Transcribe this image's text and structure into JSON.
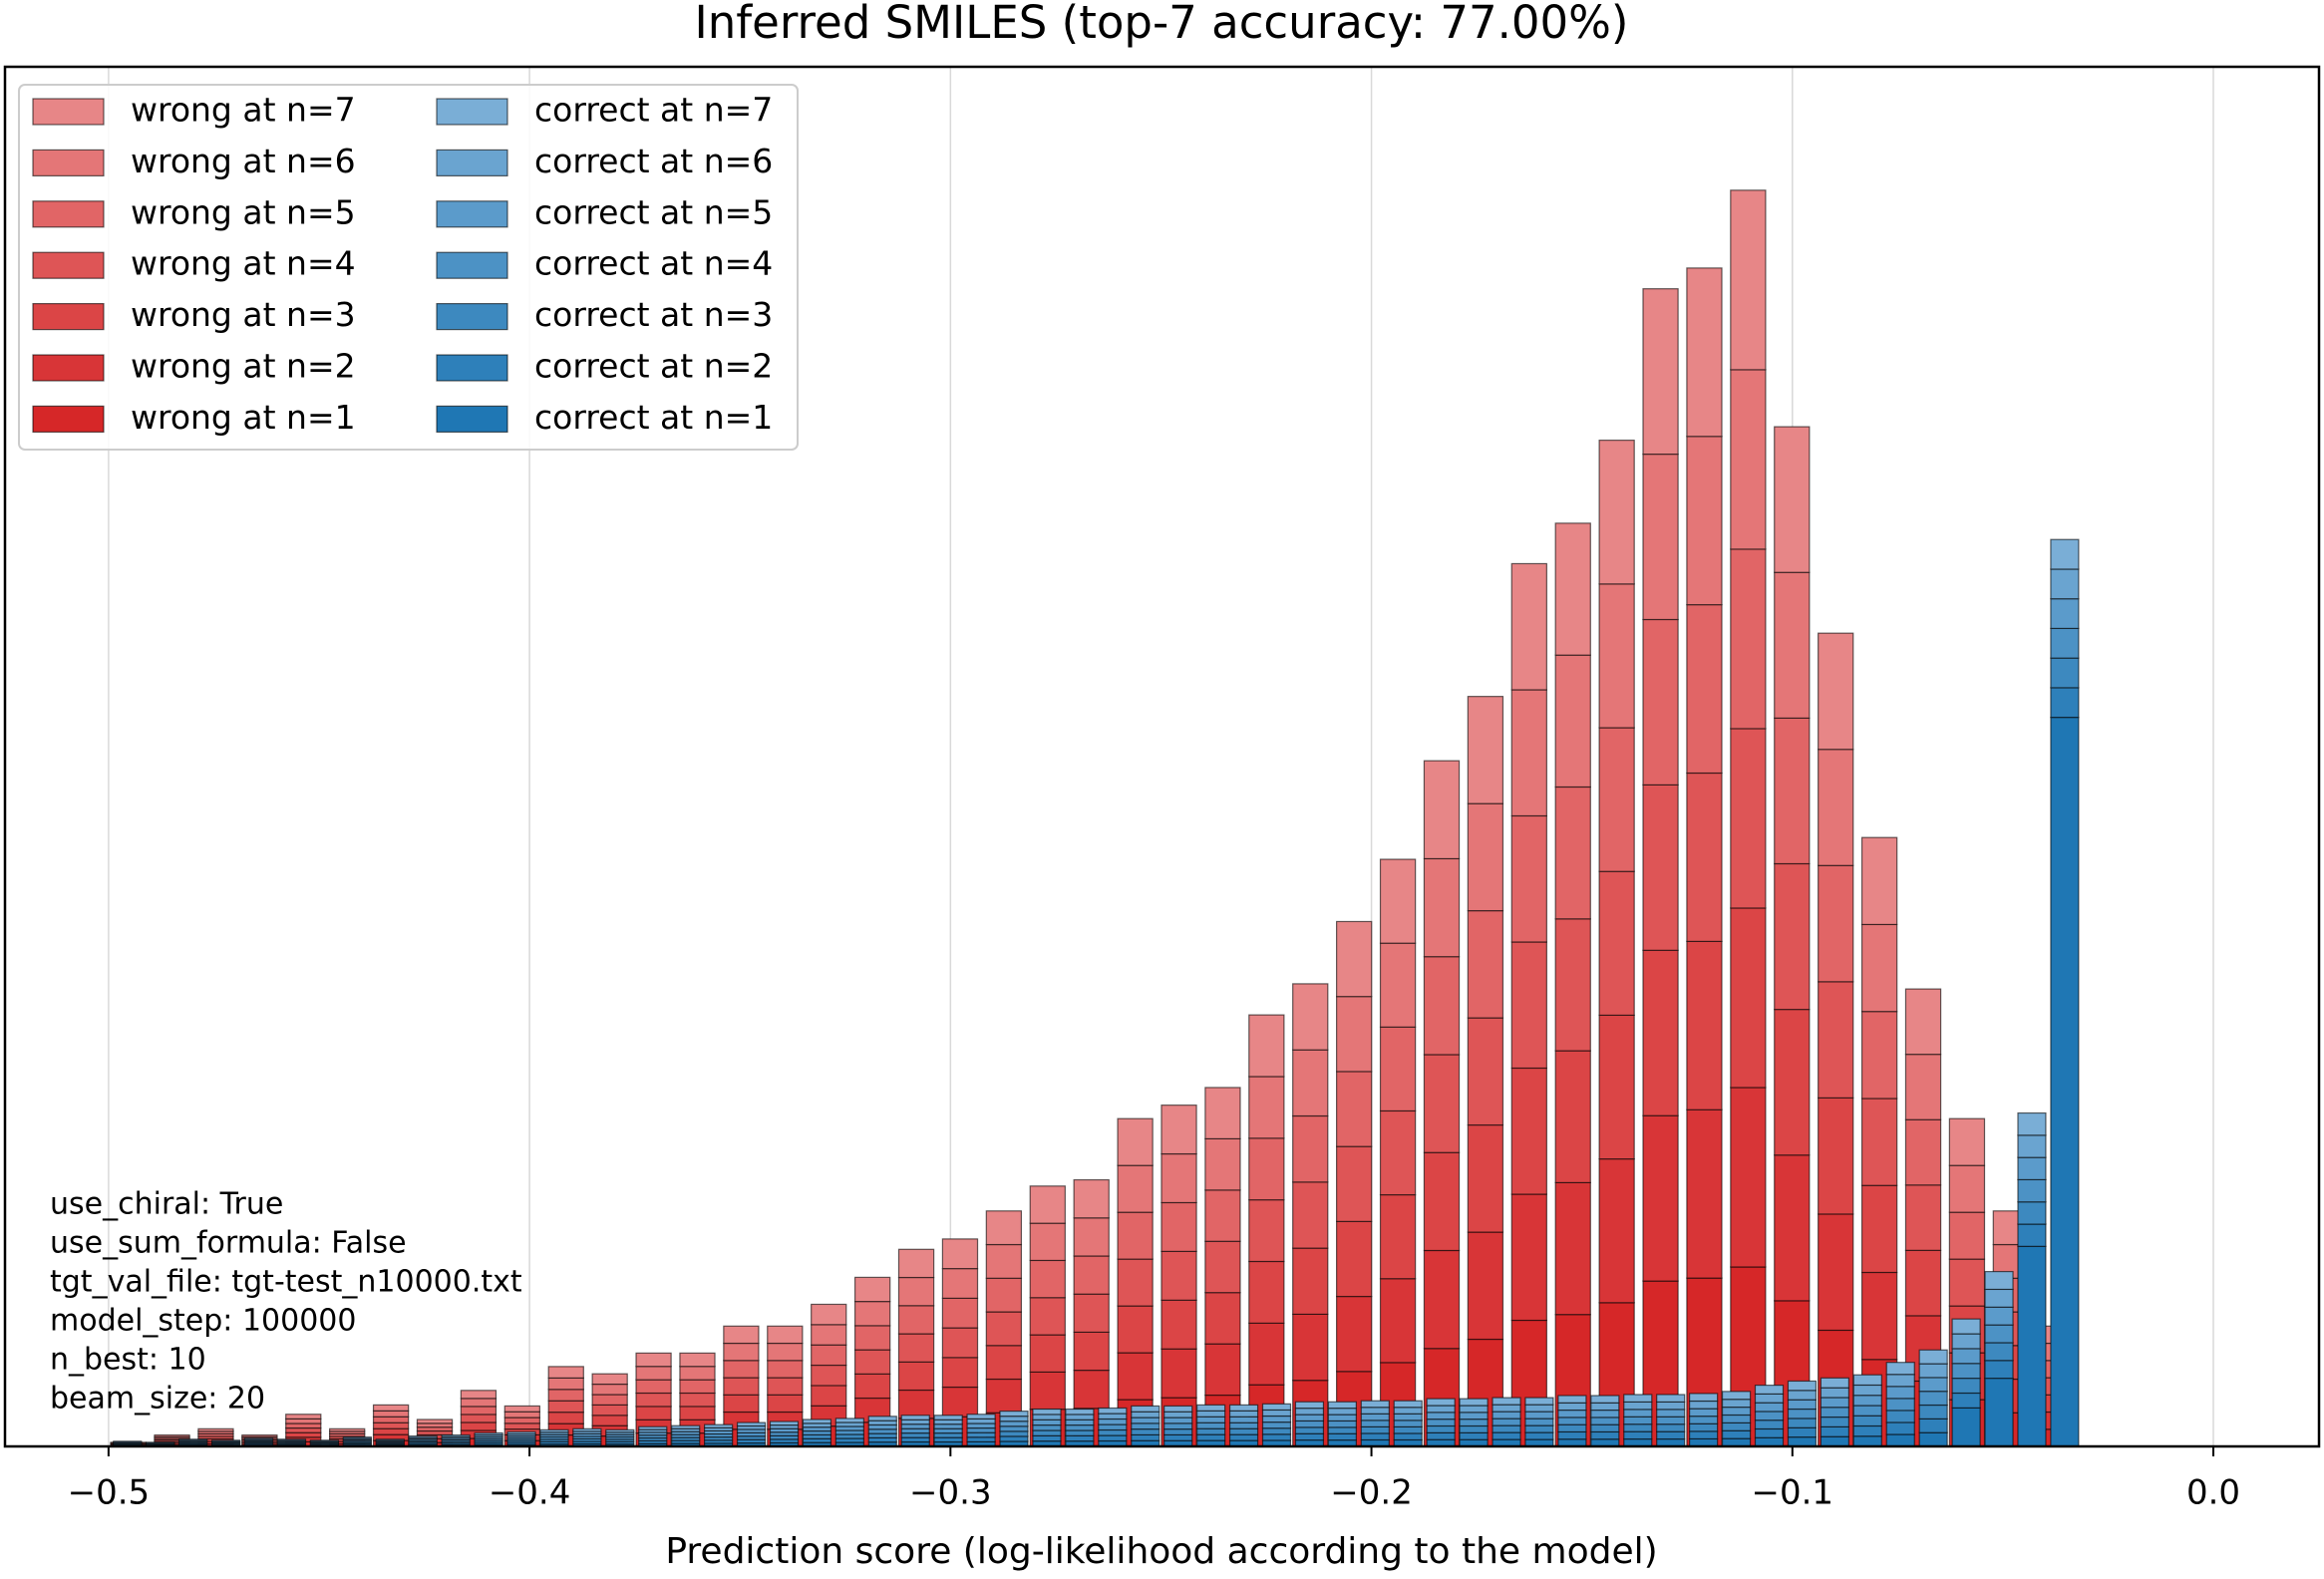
{
  "chart_data": [
    {
      "type": "histogram",
      "title": "Inferred SMILES (top-7 accuracy: 77.00%)",
      "xlabel": "Prediction score (log-likelihood according to the model)",
      "xlim": [
        -0.5246,
        0.0251
      ],
      "ylim": [
        0,
        931
      ],
      "grid": true,
      "xticks": [
        {
          "value": -0.5,
          "label": "−0.5"
        },
        {
          "value": -0.4,
          "label": "−0.4"
        },
        {
          "value": -0.3,
          "label": "−0.3"
        },
        {
          "value": -0.2,
          "label": "−0.2"
        },
        {
          "value": -0.1,
          "label": "−0.1"
        },
        {
          "value": 0,
          "label": "0.0"
        }
      ],
      "legend": "upper left",
      "annotations": [
        "use_chiral: True",
        "use_sum_formula: False",
        "tgt_val_file: tgt-test_n10000.txt",
        "model_step: 100000",
        "n_best: 10",
        "beam_size: 20"
      ],
      "bins": [
        -0.5,
        -0.4896,
        -0.4792,
        -0.4688,
        -0.4584,
        -0.448,
        -0.4376,
        -0.4272,
        -0.4168,
        -0.4064,
        -0.396,
        -0.3856,
        -0.3752,
        -0.3648,
        -0.3544,
        -0.344,
        -0.3336,
        -0.3232,
        -0.3128,
        -0.3024,
        -0.292,
        -0.2816,
        -0.2712,
        -0.2608,
        -0.2504,
        -0.24,
        -0.2296,
        -0.2192,
        -0.2088,
        -0.1984,
        -0.188,
        -0.1776,
        -0.1672,
        -0.1568,
        -0.1464,
        -0.136,
        -0.1256,
        -0.1152,
        -0.1048,
        -0.0944,
        -0.084,
        -0.0736,
        -0.0632,
        -0.0528,
        -0.0424,
        -0.032
      ],
      "series": [
        {
          "name": "wrong at n=7",
          "color": "#e78687",
          "values": [
            0.4,
            1.1,
            1.7,
            1.1,
            3.1,
            1.7,
            4,
            2.6,
            5.4,
            3.9,
            7.7,
            7,
            9,
            9,
            11.6,
            11.6,
            13.7,
            16.3,
            19,
            20,
            22.7,
            25.1,
            25.7,
            31.6,
            32.9,
            34.6,
            41.6,
            44.6,
            50.6,
            56.6,
            66.1,
            72.3,
            85.1,
            89,
            97,
            111.6,
            113.6,
            121.1,
            98.3,
            78.4,
            58.7,
            44.1,
            31.6,
            22.7,
            11.6
          ]
        },
        {
          "name": "wrong at n=6",
          "color": "#e47677",
          "values": [
            0.4,
            1.1,
            1.7,
            1.1,
            3.1,
            1.7,
            4,
            2.6,
            5.4,
            3.9,
            7.7,
            7,
            9,
            9,
            11.6,
            11.6,
            13.7,
            16.3,
            19,
            20,
            22.7,
            25.1,
            25.7,
            31.6,
            32.9,
            34.6,
            41.6,
            44.6,
            50.6,
            56.6,
            66.1,
            72.3,
            85.1,
            89,
            97,
            111.6,
            113.6,
            121.1,
            98.3,
            78.4,
            58.7,
            44.1,
            31.6,
            22.7,
            11.6
          ]
        },
        {
          "name": "wrong at n=5",
          "color": "#e16566",
          "values": [
            0.4,
            1.1,
            1.7,
            1.1,
            3.1,
            1.7,
            4,
            2.6,
            5.4,
            3.9,
            7.7,
            7,
            9,
            9,
            11.6,
            11.6,
            13.7,
            16.3,
            19,
            20,
            22.7,
            25.1,
            25.7,
            31.6,
            32.9,
            34.6,
            41.6,
            44.6,
            50.6,
            56.6,
            66.1,
            72.3,
            85.1,
            89,
            97,
            111.6,
            113.6,
            121.1,
            98.3,
            78.4,
            58.7,
            44.1,
            31.6,
            22.7,
            11.6
          ]
        },
        {
          "name": "wrong at n=4",
          "color": "#de5556",
          "values": [
            0.4,
            1.1,
            1.7,
            1.1,
            3.1,
            1.7,
            4,
            2.6,
            5.4,
            3.9,
            7.7,
            7,
            9,
            9,
            11.6,
            11.6,
            13.7,
            16.3,
            19,
            20,
            22.7,
            25.1,
            25.7,
            31.6,
            32.9,
            34.6,
            41.6,
            44.6,
            50.6,
            56.6,
            66.1,
            72.3,
            85.1,
            89,
            97,
            111.6,
            113.6,
            121.1,
            98.3,
            78.4,
            58.7,
            44.1,
            31.6,
            22.7,
            11.6
          ]
        },
        {
          "name": "wrong at n=3",
          "color": "#db4546",
          "values": [
            0.4,
            1.1,
            1.7,
            1.1,
            3.1,
            1.7,
            4,
            2.6,
            5.4,
            3.9,
            7.7,
            7,
            9,
            9,
            11.6,
            11.6,
            13.7,
            16.3,
            19,
            20,
            22.7,
            25.1,
            25.7,
            31.6,
            32.9,
            34.6,
            41.6,
            44.6,
            50.6,
            56.6,
            66.1,
            72.3,
            85.1,
            89,
            97,
            111.6,
            113.6,
            121.1,
            98.3,
            78.4,
            58.7,
            44.1,
            31.6,
            22.7,
            11.6
          ]
        },
        {
          "name": "wrong at n=2",
          "color": "#d83537",
          "values": [
            0.4,
            1.1,
            1.7,
            1.1,
            3.1,
            1.7,
            4,
            2.6,
            5.4,
            3.9,
            7.7,
            7,
            9,
            9,
            11.6,
            11.6,
            13.7,
            16.3,
            19,
            20,
            22.7,
            25.1,
            25.7,
            31.6,
            32.9,
            34.6,
            41.6,
            44.6,
            50.6,
            56.6,
            66.1,
            72.3,
            85.1,
            89,
            97,
            111.6,
            113.6,
            121.1,
            98.3,
            78.4,
            58.7,
            44.1,
            31.6,
            22.7,
            11.6
          ]
        },
        {
          "name": "wrong at n=1",
          "color": "#d62728",
          "values": [
            0.4,
            1.1,
            1.7,
            1.1,
            3.1,
            1.7,
            4,
            2.6,
            5.4,
            3.9,
            7.7,
            7,
            9,
            9,
            11.6,
            11.6,
            13.7,
            16.3,
            19,
            20,
            22.7,
            25.1,
            25.7,
            31.6,
            32.9,
            34.6,
            41.6,
            44.6,
            50.6,
            56.6,
            66.1,
            72.3,
            85.1,
            89,
            97,
            111.6,
            113.6,
            121.1,
            98.3,
            78.4,
            58.7,
            44.1,
            31.6,
            22.7,
            11.6
          ]
        }
      ]
    },
    {
      "type": "histogram",
      "bins": [
        -0.5,
        -0.4922,
        -0.4844,
        -0.4766,
        -0.4688,
        -0.461,
        -0.4532,
        -0.4454,
        -0.4376,
        -0.4298,
        -0.422,
        -0.4142,
        -0.4064,
        -0.3986,
        -0.3908,
        -0.383,
        -0.3752,
        -0.3674,
        -0.3596,
        -0.3518,
        -0.344,
        -0.3362,
        -0.3284,
        -0.3206,
        -0.3128,
        -0.305,
        -0.2972,
        -0.2894,
        -0.2816,
        -0.2738,
        -0.266,
        -0.2582,
        -0.2504,
        -0.2426,
        -0.2348,
        -0.227,
        -0.2192,
        -0.2114,
        -0.2036,
        -0.1958,
        -0.188,
        -0.1802,
        -0.1724,
        -0.1646,
        -0.1568,
        -0.149,
        -0.1412,
        -0.1334,
        -0.1256,
        -0.1178,
        -0.11,
        -0.1022,
        -0.0944,
        -0.0866,
        -0.0788,
        -0.071,
        -0.0632,
        -0.0554,
        -0.0476,
        -0.0398,
        -0.032
      ],
      "series": [
        {
          "name": "correct at n=7",
          "color": "#7aaed6",
          "values": [
            0.5,
            0.4,
            0.7,
            0.6,
            0.8,
            0.7,
            0.6,
            0.9,
            0.7,
            1,
            1.1,
            1.3,
            1.4,
            1.6,
            1.7,
            1.6,
            1.9,
            2,
            2.1,
            2.3,
            2.4,
            2.6,
            2.7,
            2.9,
            3,
            3,
            3.1,
            3.4,
            3.6,
            3.6,
            3.7,
            3.9,
            3.9,
            4,
            4,
            4.1,
            4.3,
            4.3,
            4.4,
            4.4,
            4.6,
            4.6,
            4.7,
            4.7,
            4.9,
            4.9,
            5,
            5,
            5.1,
            5.3,
            5.9,
            6.3,
            6.6,
            6.9,
            8.1,
            9.3,
            10,
            12,
            15,
            20
          ]
        },
        {
          "name": "correct at n=6",
          "color": "#6aa4d0",
          "values": [
            0.5,
            0.4,
            0.7,
            0.6,
            0.8,
            0.7,
            0.6,
            0.9,
            0.7,
            1,
            1.1,
            1.3,
            1.4,
            1.6,
            1.7,
            1.6,
            1.9,
            2,
            2.1,
            2.3,
            2.4,
            2.6,
            2.7,
            2.9,
            3,
            3,
            3.1,
            3.4,
            3.6,
            3.6,
            3.7,
            3.9,
            3.9,
            4,
            4,
            4.1,
            4.3,
            4.3,
            4.4,
            4.4,
            4.6,
            4.6,
            4.7,
            4.7,
            4.9,
            4.9,
            5,
            5,
            5.1,
            5.3,
            5.9,
            6.3,
            6.6,
            6.9,
            8.1,
            9.3,
            10,
            12,
            15,
            20
          ]
        },
        {
          "name": "correct at n=5",
          "color": "#5b9bcb",
          "values": [
            0.5,
            0.4,
            0.7,
            0.6,
            0.8,
            0.7,
            0.6,
            0.9,
            0.7,
            1,
            1.1,
            1.3,
            1.4,
            1.6,
            1.7,
            1.6,
            1.9,
            2,
            2.1,
            2.3,
            2.4,
            2.6,
            2.7,
            2.9,
            3,
            3,
            3.1,
            3.4,
            3.6,
            3.6,
            3.7,
            3.9,
            3.9,
            4,
            4,
            4.1,
            4.3,
            4.3,
            4.4,
            4.4,
            4.6,
            4.6,
            4.7,
            4.7,
            4.9,
            4.9,
            5,
            5,
            5.1,
            5.3,
            5.9,
            6.3,
            6.6,
            6.9,
            8.1,
            9.3,
            10,
            12,
            15,
            20
          ]
        },
        {
          "name": "correct at n=4",
          "color": "#4c92c5",
          "values": [
            0.5,
            0.4,
            0.7,
            0.6,
            0.8,
            0.7,
            0.6,
            0.9,
            0.7,
            1,
            1.1,
            1.3,
            1.4,
            1.6,
            1.7,
            1.6,
            1.9,
            2,
            2.1,
            2.3,
            2.4,
            2.6,
            2.7,
            2.9,
            3,
            3,
            3.1,
            3.4,
            3.6,
            3.6,
            3.7,
            3.9,
            3.9,
            4,
            4,
            4.1,
            4.3,
            4.3,
            4.4,
            4.4,
            4.6,
            4.6,
            4.7,
            4.7,
            4.9,
            4.9,
            5,
            5,
            5.1,
            5.3,
            5.9,
            6.3,
            6.6,
            6.9,
            8.1,
            9.3,
            10,
            12,
            15,
            20
          ]
        },
        {
          "name": "correct at n=3",
          "color": "#3d89bf",
          "values": [
            0.5,
            0.4,
            0.7,
            0.6,
            0.8,
            0.7,
            0.6,
            0.9,
            0.7,
            1,
            1.1,
            1.3,
            1.4,
            1.6,
            1.7,
            1.6,
            1.9,
            2,
            2.1,
            2.3,
            2.4,
            2.6,
            2.7,
            2.9,
            3,
            3,
            3.1,
            3.4,
            3.6,
            3.6,
            3.7,
            3.9,
            3.9,
            4,
            4,
            4.1,
            4.3,
            4.3,
            4.4,
            4.4,
            4.6,
            4.6,
            4.7,
            4.7,
            4.9,
            4.9,
            5,
            5,
            5.1,
            5.3,
            5.9,
            6.3,
            6.6,
            6.9,
            8.1,
            9.3,
            10,
            12,
            15,
            20
          ]
        },
        {
          "name": "correct at n=2",
          "color": "#2e80ba",
          "values": [
            0.5,
            0.4,
            0.7,
            0.6,
            0.8,
            0.7,
            0.6,
            0.9,
            0.7,
            1,
            1.1,
            1.3,
            1.4,
            1.6,
            1.7,
            1.6,
            1.9,
            2,
            2.1,
            2.3,
            2.4,
            2.6,
            2.7,
            2.9,
            3,
            3,
            3.1,
            3.4,
            3.6,
            3.6,
            3.7,
            3.9,
            3.9,
            4,
            4,
            4.1,
            4.3,
            4.3,
            4.4,
            4.4,
            4.6,
            4.6,
            4.7,
            4.7,
            4.9,
            4.9,
            5,
            5,
            5.1,
            5.3,
            5.9,
            6.3,
            6.6,
            6.9,
            8.1,
            9.3,
            10,
            12,
            15,
            20
          ]
        },
        {
          "name": "correct at n=1",
          "color": "#1f77b4",
          "values": [
            0.5,
            0.4,
            0.7,
            0.6,
            0.8,
            0.7,
            0.6,
            0.9,
            0.7,
            1,
            1.1,
            1.3,
            1.4,
            1.6,
            1.7,
            1.6,
            1.9,
            2,
            2.1,
            2.3,
            2.4,
            2.6,
            2.7,
            2.9,
            3,
            3,
            3.1,
            3.4,
            3.6,
            3.6,
            3.7,
            3.9,
            3.9,
            4,
            4,
            4.1,
            4.3,
            4.3,
            4.4,
            4.4,
            4.6,
            4.6,
            4.7,
            4.7,
            4.9,
            4.9,
            5,
            5,
            5.1,
            5.3,
            5.9,
            6.3,
            6.6,
            6.9,
            8.1,
            9.3,
            26,
            46,
            135,
            492
          ]
        }
      ]
    }
  ]
}
